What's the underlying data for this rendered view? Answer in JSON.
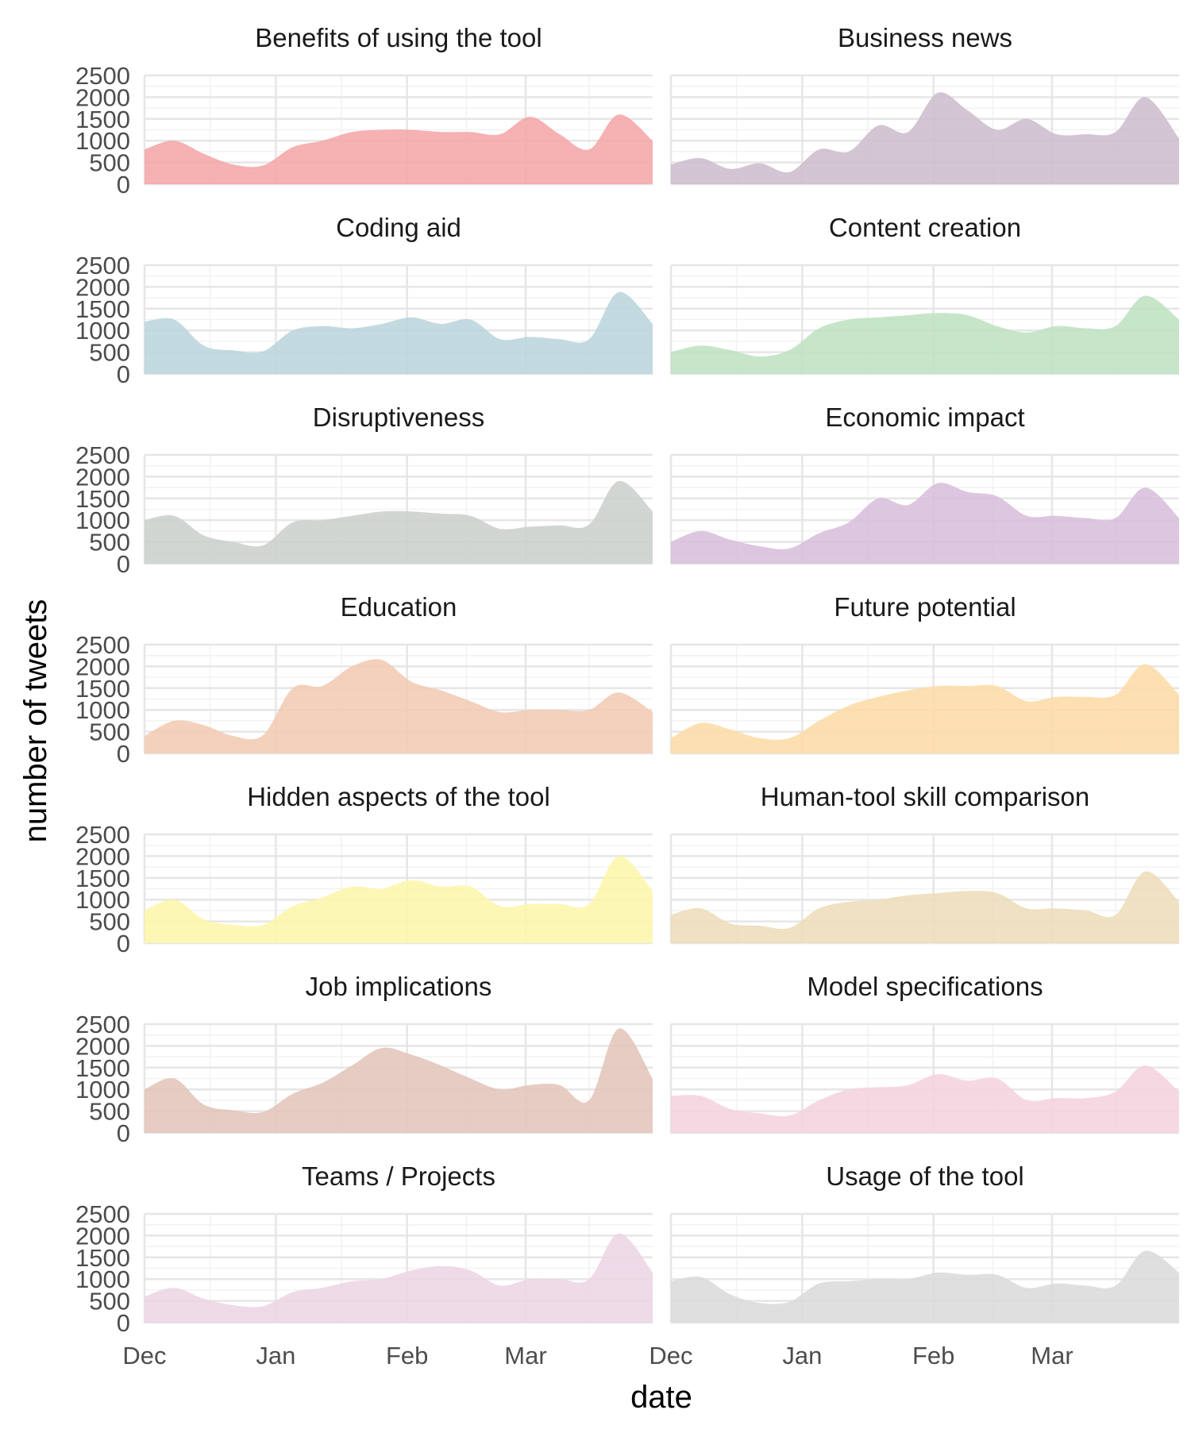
{
  "chart_data": {
    "type": "area",
    "xlabel": "date",
    "ylabel": "number of tweets",
    "x_ticks": [
      "Dec",
      "Jan",
      "Feb",
      "Mar"
    ],
    "x_range": [
      "2022-12-01",
      "2023-03-31"
    ],
    "ylim": [
      0,
      2500
    ],
    "y_ticks": [
      0,
      500,
      1000,
      1500,
      2000,
      2500
    ],
    "grid": true,
    "legend": "none",
    "x": [
      "2022-12-01",
      "2022-12-08",
      "2022-12-15",
      "2022-12-22",
      "2022-12-29",
      "2023-01-05",
      "2023-01-12",
      "2023-01-19",
      "2023-01-26",
      "2023-02-02",
      "2023-02-09",
      "2023-02-16",
      "2023-02-23",
      "2023-03-02",
      "2023-03-09",
      "2023-03-16",
      "2023-03-23",
      "2023-03-31"
    ],
    "series": [
      {
        "name": "Benefits of using the tool",
        "color": "#f4a3a6",
        "values": [
          800,
          1000,
          700,
          450,
          430,
          850,
          1000,
          1200,
          1250,
          1250,
          1200,
          1200,
          1150,
          1550,
          1150,
          800,
          1600,
          1000
        ]
      },
      {
        "name": "Business news",
        "color": "#cbbbcb",
        "values": [
          450,
          600,
          350,
          480,
          280,
          800,
          750,
          1350,
          1200,
          2100,
          1700,
          1250,
          1500,
          1150,
          1150,
          1200,
          2000,
          1050
        ]
      },
      {
        "name": "Coding aid",
        "color": "#b8d4dc",
        "values": [
          1200,
          1250,
          650,
          540,
          520,
          1000,
          1100,
          1050,
          1150,
          1300,
          1150,
          1250,
          800,
          850,
          800,
          800,
          1880,
          1150
        ]
      },
      {
        "name": "Content creation",
        "color": "#bde2c0",
        "values": [
          500,
          650,
          550,
          400,
          550,
          1050,
          1250,
          1300,
          1350,
          1400,
          1350,
          1100,
          950,
          1100,
          1050,
          1100,
          1800,
          1250
        ]
      },
      {
        "name": "Disruptiveness",
        "color": "#c9cfcb",
        "values": [
          1000,
          1100,
          650,
          500,
          420,
          950,
          1000,
          1100,
          1200,
          1200,
          1150,
          1100,
          800,
          850,
          880,
          900,
          1900,
          1200
        ]
      },
      {
        "name": "Economic impact",
        "color": "#d7bcd9",
        "values": [
          500,
          750,
          550,
          400,
          350,
          700,
          950,
          1500,
          1350,
          1850,
          1650,
          1550,
          1100,
          1100,
          1050,
          1050,
          1750,
          1050
        ]
      },
      {
        "name": "Education",
        "color": "#f2c9b1",
        "values": [
          400,
          750,
          650,
          400,
          420,
          1500,
          1550,
          2000,
          2150,
          1650,
          1450,
          1200,
          950,
          1000,
          1000,
          1000,
          1400,
          950
        ]
      },
      {
        "name": "Future potential",
        "color": "#fddaa4",
        "values": [
          350,
          700,
          550,
          350,
          350,
          750,
          1100,
          1300,
          1450,
          1550,
          1550,
          1550,
          1200,
          1300,
          1300,
          1350,
          2050,
          1350
        ]
      },
      {
        "name": "Hidden aspects of the tool",
        "color": "#fdf6a9",
        "values": [
          750,
          1000,
          550,
          420,
          420,
          850,
          1050,
          1300,
          1250,
          1450,
          1300,
          1300,
          850,
          900,
          900,
          900,
          2000,
          1200
        ]
      },
      {
        "name": "Human-tool skill comparison",
        "color": "#ecdcb6",
        "values": [
          650,
          800,
          450,
          400,
          350,
          800,
          950,
          1000,
          1100,
          1150,
          1200,
          1150,
          800,
          800,
          750,
          650,
          1650,
          950
        ]
      },
      {
        "name": "Job implications",
        "color": "#e2c3b7",
        "values": [
          1000,
          1250,
          650,
          520,
          480,
          900,
          1150,
          1550,
          1950,
          1800,
          1550,
          1250,
          1000,
          1100,
          1100,
          750,
          2400,
          1250
        ]
      },
      {
        "name": "Model specifications",
        "color": "#f4d1de",
        "values": [
          850,
          850,
          550,
          450,
          400,
          750,
          1000,
          1050,
          1100,
          1350,
          1200,
          1250,
          750,
          800,
          800,
          950,
          1550,
          950
        ]
      },
      {
        "name": "Teams / Projects",
        "color": "#ecd4e4",
        "values": [
          600,
          800,
          550,
          400,
          380,
          700,
          800,
          950,
          1000,
          1200,
          1300,
          1200,
          850,
          1000,
          1000,
          1000,
          2050,
          1150
        ]
      },
      {
        "name": "Usage of the tool",
        "color": "#d9d9d9",
        "values": [
          950,
          1050,
          650,
          450,
          480,
          900,
          950,
          1000,
          1000,
          1150,
          1100,
          1100,
          800,
          900,
          850,
          850,
          1650,
          1150
        ]
      }
    ]
  }
}
